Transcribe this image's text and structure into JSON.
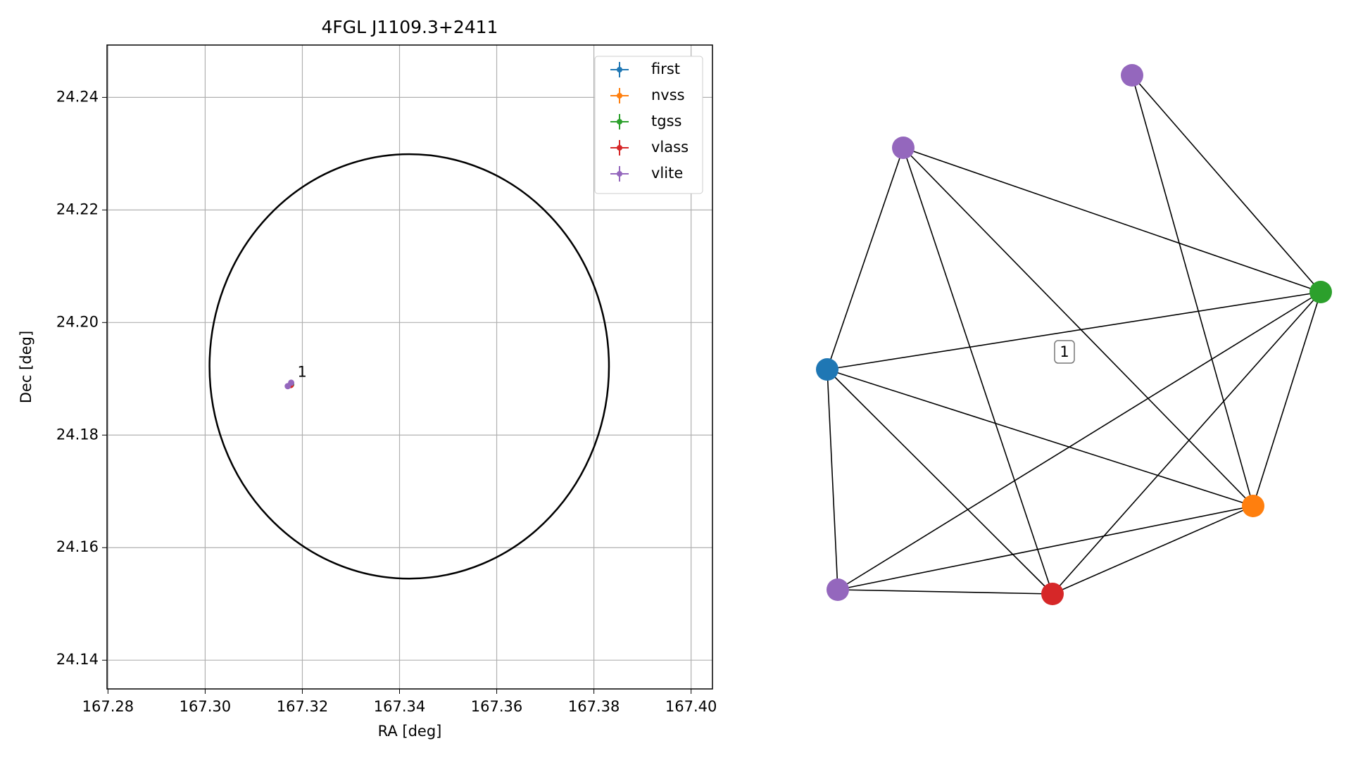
{
  "chart_data": [
    {
      "type": "scatter",
      "title": "4FGL J1109.3+2411",
      "xlabel": "RA [deg]",
      "ylabel": "Dec [deg]",
      "xlim": [
        167.2798,
        167.4044
      ],
      "ylim": [
        24.1349,
        24.2493
      ],
      "xticks": [
        167.28,
        {
          "value": 167.3,
          "label": "167.30"
        },
        167.32,
        167.34,
        167.36,
        167.38,
        {
          "value": 167.4,
          "label": "167.40"
        }
      ],
      "yticks": [
        24.14,
        24.16,
        24.18,
        {
          "value": 24.2,
          "label": "24.20"
        },
        24.22,
        24.24
      ],
      "grid": true,
      "legend": "upper right",
      "series": [
        {
          "name": "first",
          "color": "#1f77b4",
          "x": [
            167.3177
          ],
          "y": [
            24.189
          ]
        },
        {
          "name": "nvss",
          "color": "#ff7f0e",
          "x": [
            167.3176
          ],
          "y": [
            24.1889
          ]
        },
        {
          "name": "tgss",
          "color": "#2ca02c",
          "x": [
            167.3177
          ],
          "y": [
            24.189
          ]
        },
        {
          "name": "vlass",
          "color": "#d62728",
          "x": [
            167.3176
          ],
          "y": [
            24.1889
          ]
        },
        {
          "name": "vlite",
          "color": "#9467bd",
          "x": [
            167.317,
            167.3177
          ],
          "y": [
            24.1887,
            24.1893
          ]
        }
      ],
      "ellipse": {
        "x": 167.342,
        "y": 24.1922,
        "rx": 0.0411,
        "ry": 0.0377,
        "color": "#000000"
      },
      "annotation": {
        "text": "1",
        "x": 167.319,
        "y": 24.1911
      }
    },
    {
      "type": "network",
      "label": "1",
      "nodes": [
        {
          "color": "#9467bd"
        },
        {
          "color": "#9467bd"
        },
        {
          "color": "#2ca02c"
        },
        {
          "color": "#1f77b4"
        },
        {
          "color": "#ff7f0e"
        },
        {
          "color": "#9467bd"
        },
        {
          "color": "#d62728"
        }
      ],
      "edges": [
        [
          0,
          2
        ],
        [
          0,
          4
        ],
        [
          1,
          3
        ],
        [
          1,
          6
        ],
        [
          1,
          4
        ],
        [
          1,
          2
        ],
        [
          2,
          3
        ],
        [
          2,
          5
        ],
        [
          2,
          6
        ],
        [
          2,
          4
        ],
        [
          3,
          4
        ],
        [
          3,
          6
        ],
        [
          3,
          5
        ],
        [
          4,
          5
        ],
        [
          4,
          6
        ],
        [
          5,
          6
        ]
      ]
    }
  ]
}
